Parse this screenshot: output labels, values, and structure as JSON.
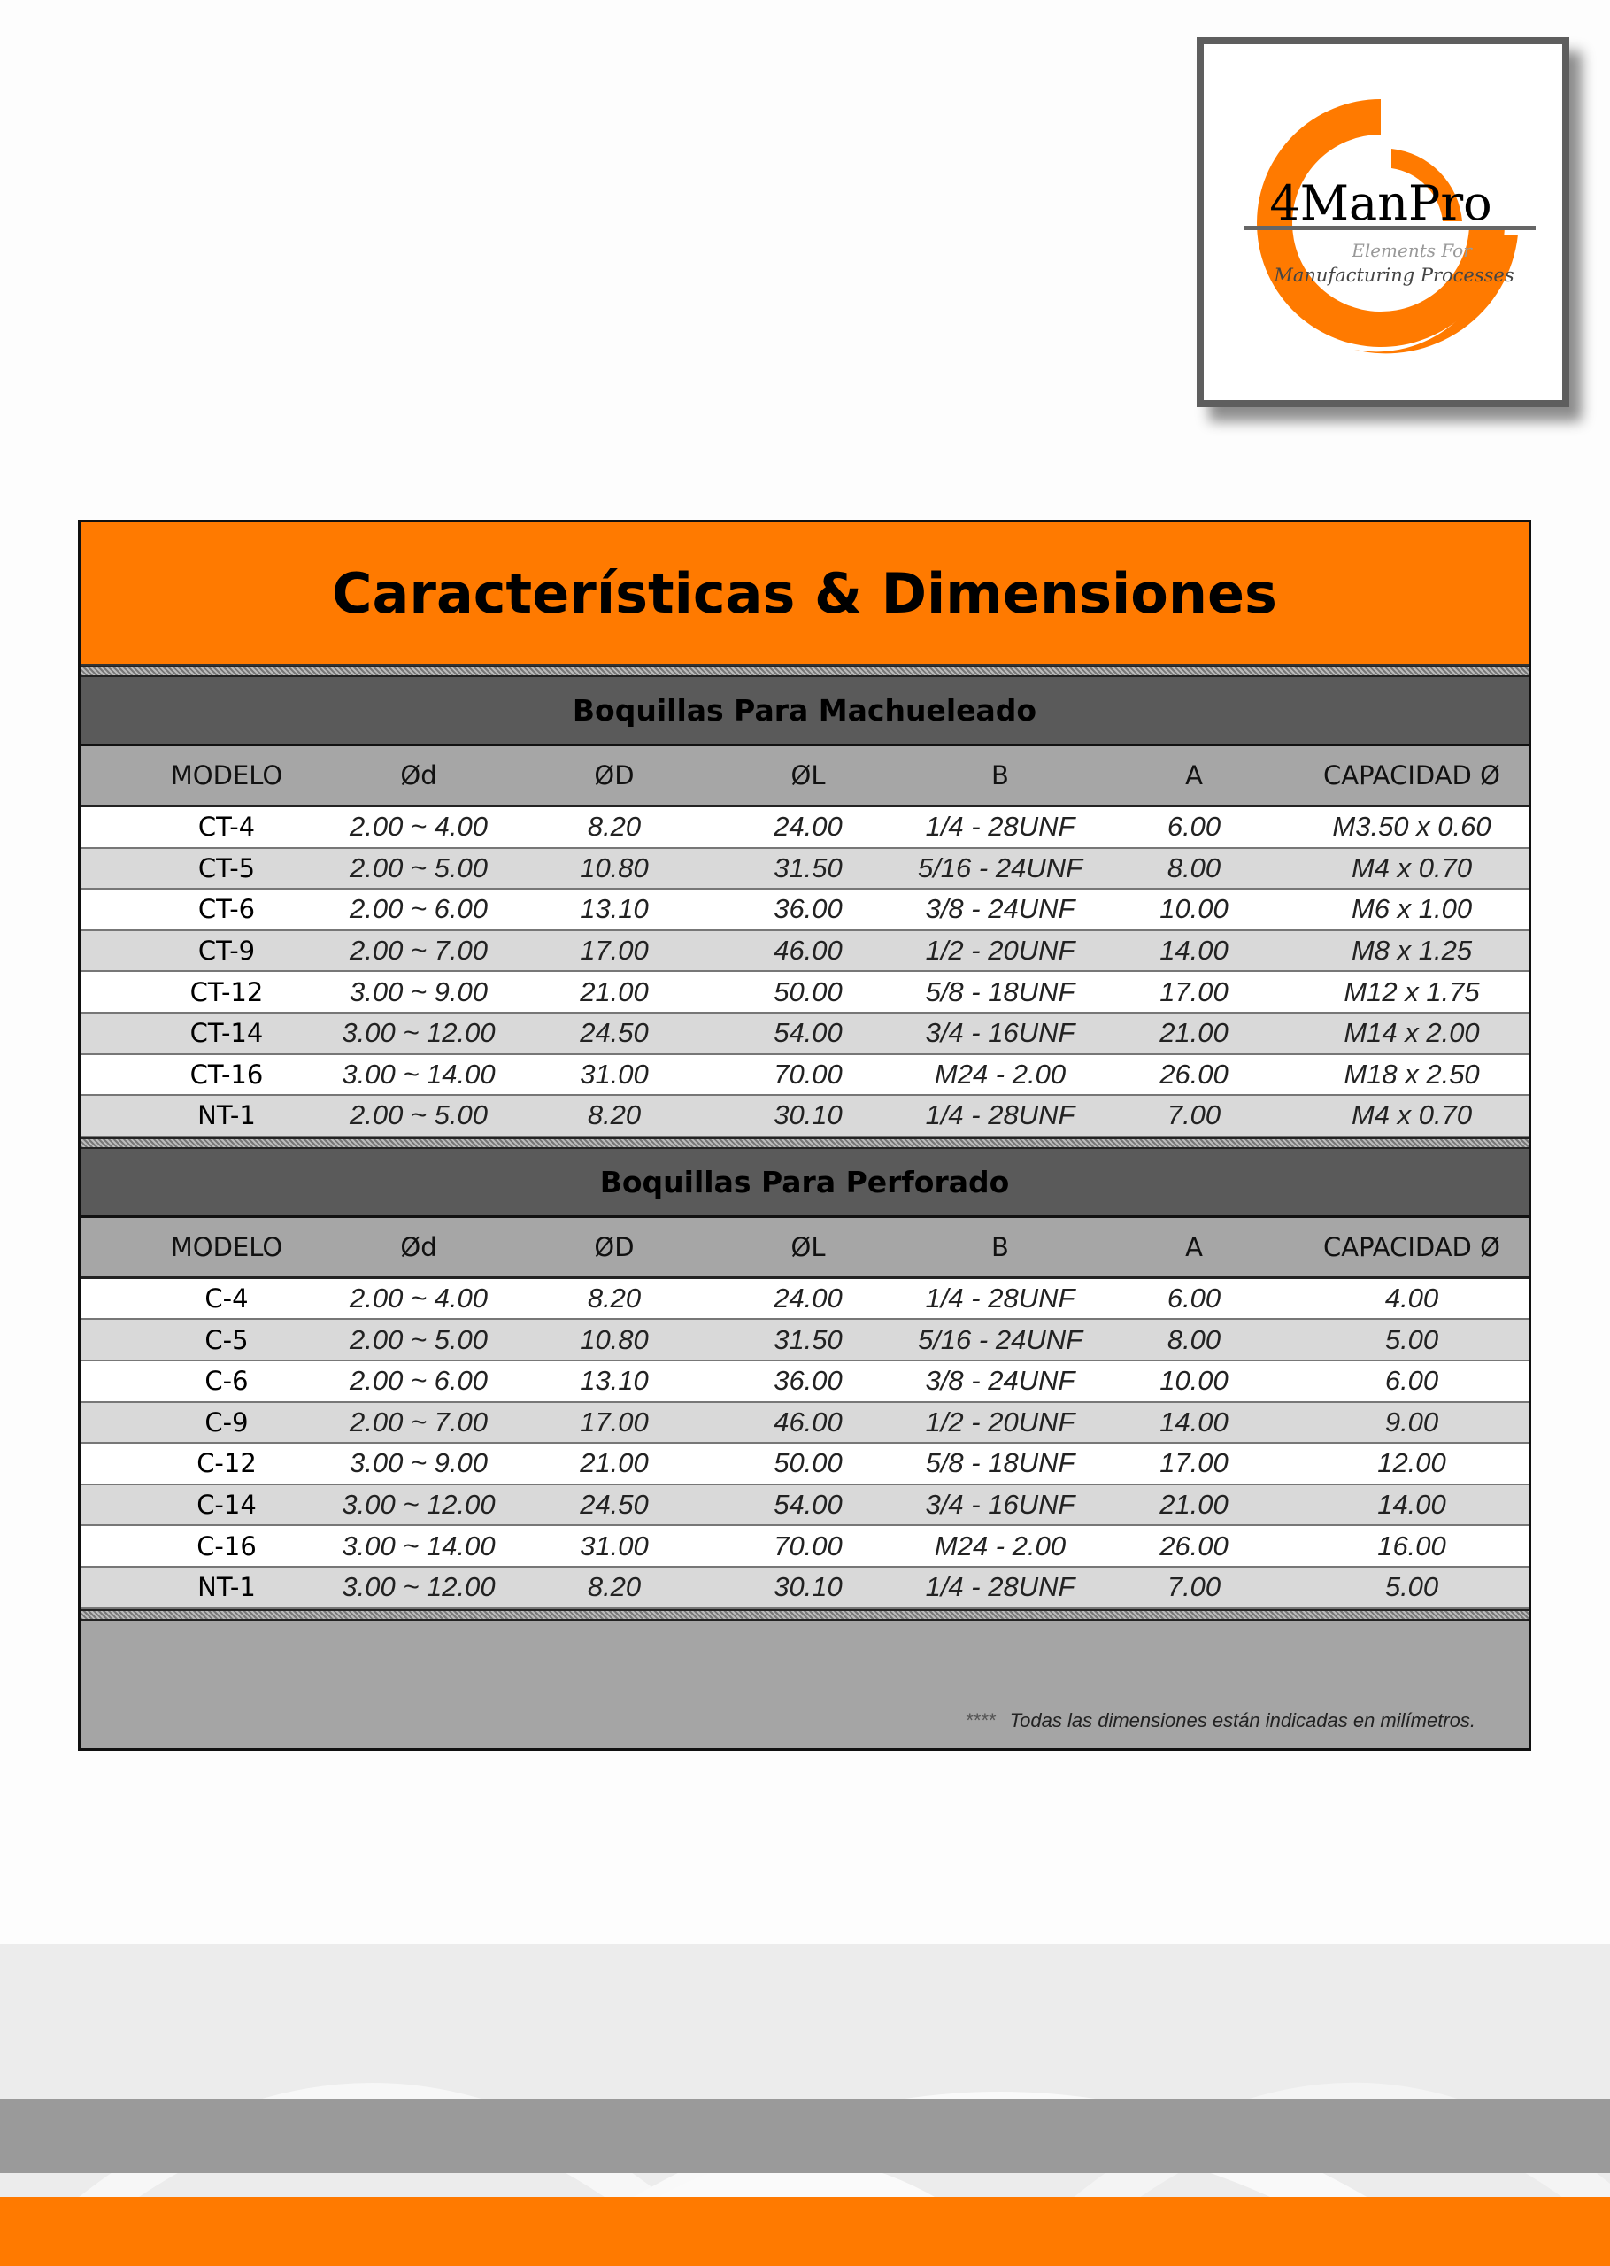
{
  "logo": {
    "name": "4ManPro",
    "tagline_1": "Elements For",
    "tagline_2": "Manufacturing Processes"
  },
  "title": "Características & Dimensiones",
  "colors": {
    "accent": "#ff7a00",
    "section": "#5a5a5a",
    "header": "#a6a6a6",
    "stripe": "#d9d9d9"
  },
  "columns": [
    "MODELO",
    "Ød",
    "ØD",
    "ØL",
    "B",
    "A",
    "CAPACIDAD Ø"
  ],
  "sections": [
    {
      "title": "Boquillas Para Machueleado",
      "rows": [
        [
          "CT-4",
          "2.00 ~ 4.00",
          "8.20",
          "24.00",
          "1/4 - 28UNF",
          "6.00",
          "M3.50 x 0.60"
        ],
        [
          "CT-5",
          "2.00 ~ 5.00",
          "10.80",
          "31.50",
          "5/16 - 24UNF",
          "8.00",
          "M4 x 0.70"
        ],
        [
          "CT-6",
          "2.00 ~ 6.00",
          "13.10",
          "36.00",
          "3/8 - 24UNF",
          "10.00",
          "M6 x 1.00"
        ],
        [
          "CT-9",
          "2.00 ~ 7.00",
          "17.00",
          "46.00",
          "1/2 - 20UNF",
          "14.00",
          "M8 x 1.25"
        ],
        [
          "CT-12",
          "3.00 ~ 9.00",
          "21.00",
          "50.00",
          "5/8 - 18UNF",
          "17.00",
          "M12 x 1.75"
        ],
        [
          "CT-14",
          "3.00 ~ 12.00",
          "24.50",
          "54.00",
          "3/4 - 16UNF",
          "21.00",
          "M14 x 2.00"
        ],
        [
          "CT-16",
          "3.00 ~ 14.00",
          "31.00",
          "70.00",
          "M24 - 2.00",
          "26.00",
          "M18 x 2.50"
        ],
        [
          "NT-1",
          "2.00 ~ 5.00",
          "8.20",
          "30.10",
          "1/4 - 28UNF",
          "7.00",
          "M4 x 0.70"
        ]
      ]
    },
    {
      "title": "Boquillas Para Perforado",
      "rows": [
        [
          "C-4",
          "2.00 ~ 4.00",
          "8.20",
          "24.00",
          "1/4 - 28UNF",
          "6.00",
          "4.00"
        ],
        [
          "C-5",
          "2.00 ~ 5.00",
          "10.80",
          "31.50",
          "5/16 - 24UNF",
          "8.00",
          "5.00"
        ],
        [
          "C-6",
          "2.00 ~ 6.00",
          "13.10",
          "36.00",
          "3/8 - 24UNF",
          "10.00",
          "6.00"
        ],
        [
          "C-9",
          "2.00 ~ 7.00",
          "17.00",
          "46.00",
          "1/2 - 20UNF",
          "14.00",
          "9.00"
        ],
        [
          "C-12",
          "3.00 ~ 9.00",
          "21.00",
          "50.00",
          "5/8 - 18UNF",
          "17.00",
          "12.00"
        ],
        [
          "C-14",
          "3.00 ~ 12.00",
          "24.50",
          "54.00",
          "3/4 - 16UNF",
          "21.00",
          "14.00"
        ],
        [
          "C-16",
          "3.00 ~ 14.00",
          "31.00",
          "70.00",
          "M24 - 2.00",
          "26.00",
          "16.00"
        ],
        [
          "NT-1",
          "3.00 ~ 12.00",
          "8.20",
          "30.10",
          "1/4 - 28UNF",
          "7.00",
          "5.00"
        ]
      ]
    }
  ],
  "footnote": {
    "stars": "****",
    "text": "Todas las dimensiones están indicadas en milímetros."
  }
}
